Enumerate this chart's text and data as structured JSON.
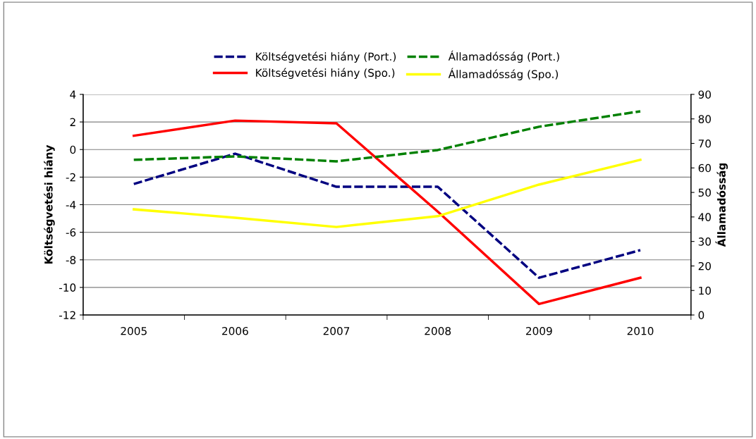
{
  "chart_data": {
    "type": "line",
    "categories": [
      "2005",
      "2006",
      "2007",
      "2008",
      "2009",
      "2010"
    ],
    "ylabel": "Költségvetési hiány",
    "y2label": "Államadósság",
    "ylim": [
      -12,
      4
    ],
    "yticks": [
      -12,
      -10,
      -8,
      -6,
      -4,
      -2,
      0,
      2,
      4
    ],
    "y2lim": [
      0,
      90
    ],
    "y2ticks": [
      0,
      10,
      20,
      30,
      40,
      50,
      60,
      70,
      80,
      90
    ],
    "grid": "y",
    "legend": "top",
    "marker": "none",
    "series": [
      {
        "name": "Költségvetési hiány (Port.)",
        "color": "#000080",
        "line_style": "dashed",
        "values": [
          -2.5,
          -0.3,
          -2.7,
          -2.7,
          -9.3,
          -7.3
        ]
      },
      {
        "name": "Költségvetési hiány (Spo.)",
        "color": "#ff0000",
        "line_style": "solid",
        "values": [
          1.0,
          2.1,
          1.9,
          -4.5,
          -11.2,
          -9.3
        ]
      },
      {
        "name": "Államadósság (Port.)",
        "color": "#008000",
        "line_style": "dashed",
        "axis": "y2",
        "values": [
          63.3,
          64.7,
          62.7,
          67.3,
          76.8,
          83.1
        ]
      },
      {
        "name": "Államadósság (Spo.)",
        "color": "#ffff00",
        "line_style": "solid",
        "axis": "y2",
        "values": [
          43.1,
          39.7,
          35.9,
          40.3,
          53.2,
          63.3
        ]
      }
    ]
  }
}
